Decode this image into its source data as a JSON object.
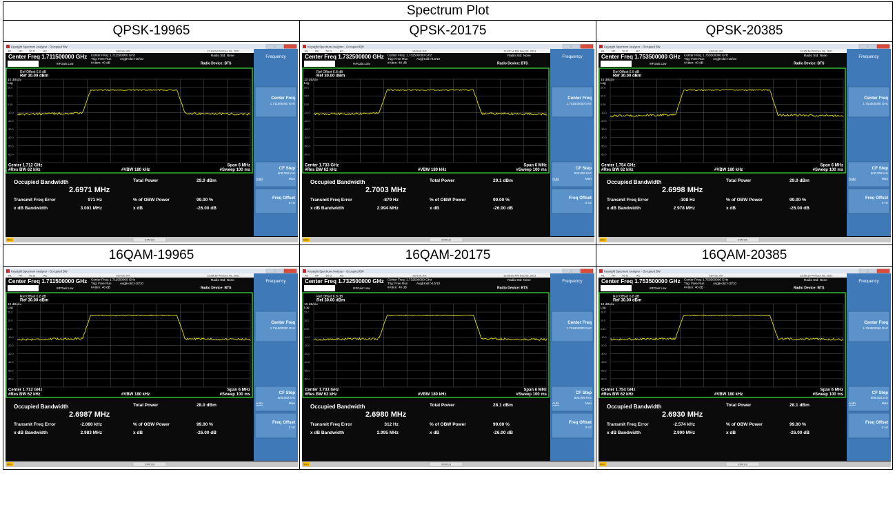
{
  "page": {
    "title": "Spectrum Plot"
  },
  "colors": {
    "window_bg": "#0b0b0b",
    "title_bar": "#dfe6ef",
    "title_bar_text": "#333333",
    "plot_frame": "#34c934",
    "plot_bg": "#000000",
    "grid": "#585858",
    "trace": "#e3e000",
    "softkey_panel": "#3f79b7",
    "softkey_button": "#5b92c9",
    "status_bar": "#c8c8c8",
    "status_led": "#ffbf00",
    "text_white": "#ffffff"
  },
  "common": {
    "window_title": "Keysight Spectrum Analyzer - Occupied BW",
    "top_tags": [
      "RL",
      "RF",
      "50 Ω",
      "AC"
    ],
    "sense": "SENSE:INT",
    "trig": "Trig: Free Run",
    "avg_hold": "Avg|Hold:>10/10",
    "atten": "#Atten: 40 dB",
    "if_gain": "#IFGain:Low",
    "radio_std": "Radio Std: None",
    "radio_device": "Radio Device: BTS",
    "ref_offset": "Ref Offset 6.8 dB",
    "ref_level": "Ref 30.00 dBm",
    "scale": "10 dB/div",
    "scale_type": "Log",
    "y_ticks": [
      "20.0",
      "10.0",
      "0.00",
      "-10.0",
      "-20.0",
      "-30.0",
      "-40.0",
      "-50.0",
      "-60.0"
    ],
    "res_bw": "#Res BW  62 kHz",
    "vbw": "#VBW  180 kHz",
    "span": "Span 6 MHz",
    "sweep": "#Sweep  100 ms",
    "occ_bw_label": "Occupied Bandwidth",
    "total_power_label": "Total Power",
    "tx_freq_err_label": "Transmit Freq Error",
    "obw_power_label": "% of OBW Power",
    "obw_power_value": "99.00 %",
    "xdb_bw_label": "x dB Bandwidth",
    "xdb_label": "x dB",
    "xdb_value": "-26.00 dB",
    "status": "STATUS",
    "msg": "MSG",
    "softkeys": {
      "frequency": "Frequency",
      "center_freq": "Center Freq",
      "cf_step": "CF Step",
      "cf_step_value": "600.000 kHz",
      "auto": "Auto",
      "man": "Man",
      "freq_offset": "Freq Offset",
      "freq_offset_value": "0 Hz"
    }
  },
  "panels": [
    {
      "label": "QPSK-19965",
      "center_freq_title": "Center Freq 1.711500000 GHz",
      "center_freq_sub": "Center Freq: 1.711500000 GHz",
      "softkey_center": "1.711500000 GHz",
      "center_bottom": "Center  1.712 GHz",
      "timestamp": "12:43:09 PM Dec 08, 2021",
      "occ_bw": "2.6971 MHz",
      "total_power": "29.0 dBm",
      "tx_freq_error": "971 Hz",
      "xdb_bw": "3.001 MHz",
      "plateau_db": 17,
      "floor_db": -12
    },
    {
      "label": "QPSK-20175",
      "center_freq_title": "Center Freq 1.732500000 GHz",
      "center_freq_sub": "Center Freq: 1.732500000 GHz",
      "softkey_center": "1.732500000 GHz",
      "center_bottom": "Center  1.733 GHz",
      "timestamp": "12:45:14 PM Dec 08, 2021",
      "occ_bw": "2.7003 MHz",
      "total_power": "29.1 dBm",
      "tx_freq_error": "-879 Hz",
      "xdb_bw": "2.994 MHz",
      "plateau_db": 17,
      "floor_db": -12
    },
    {
      "label": "QPSK-20385",
      "center_freq_title": "Center Freq 1.753500000 GHz",
      "center_freq_sub": "Center Freq: 1.753500000 GHz",
      "softkey_center": "1.753500000 GHz",
      "center_bottom": "Center  1.754 GHz",
      "timestamp": "12:45:34 PM Dec 08, 2021",
      "occ_bw": "2.6998 MHz",
      "total_power": "29.0 dBm",
      "tx_freq_error": "-108 Hz",
      "xdb_bw": "2.978 MHz",
      "plateau_db": 17,
      "floor_db": -14
    },
    {
      "label": "16QAM-19965",
      "center_freq_title": "Center Freq 1.711500000 GHz",
      "center_freq_sub": "Center Freq: 1.711500000 GHz",
      "softkey_center": "1.711500000 GHz",
      "center_bottom": "Center  1.712 GHz",
      "timestamp": "12:58:38 PM Dec 08, 2021",
      "occ_bw": "2.6987 MHz",
      "total_power": "28.0 dBm",
      "tx_freq_error": "-2.080 kHz",
      "xdb_bw": "2.983 MHz",
      "plateau_db": 16,
      "floor_db": -13
    },
    {
      "label": "16QAM-20175",
      "center_freq_title": "Center Freq 1.732500000 GHz",
      "center_freq_sub": "Center Freq: 1.732500000 GHz",
      "softkey_center": "1.732500000 GHz",
      "center_bottom": "Center  1.733 GHz",
      "timestamp": "12:58:59 PM Dec 08, 2021",
      "occ_bw": "2.6980 MHz",
      "total_power": "28.1 dBm",
      "tx_freq_error": "312 Hz",
      "xdb_bw": "2.995 MHz",
      "plateau_db": 16,
      "floor_db": -13
    },
    {
      "label": "16QAM-20385",
      "center_freq_title": "Center Freq 1.753500000 GHz",
      "center_freq_sub": "Center Freq: 1.753500000 GHz",
      "softkey_center": "1.753500000 GHz",
      "center_bottom": "Center  1.754 GHz",
      "timestamp": "12:59:19 PM Dec 08, 2021",
      "occ_bw": "2.6930 MHz",
      "total_power": "28.1 dBm",
      "tx_freq_error": "-2.574 kHz",
      "xdb_bw": "2.990 MHz",
      "plateau_db": 16,
      "floor_db": -13
    }
  ]
}
